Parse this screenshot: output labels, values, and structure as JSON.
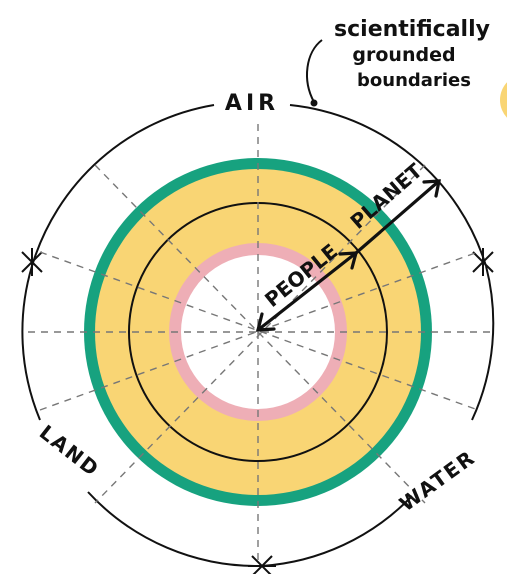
{
  "annotation": {
    "lines": [
      "scientifically",
      "grounded",
      "boundaries"
    ]
  },
  "labels": {
    "air": "AIR",
    "land": "LAND",
    "water": "WATER",
    "people": "PEOPLE",
    "planet": "PLANET"
  },
  "colors": {
    "outer_ring": "#17a27f",
    "planet_band": "#f9d574",
    "people_ring": "#eeaeb6",
    "ink": "#111111",
    "dashes": "#777777",
    "background": "#ffffff"
  }
}
